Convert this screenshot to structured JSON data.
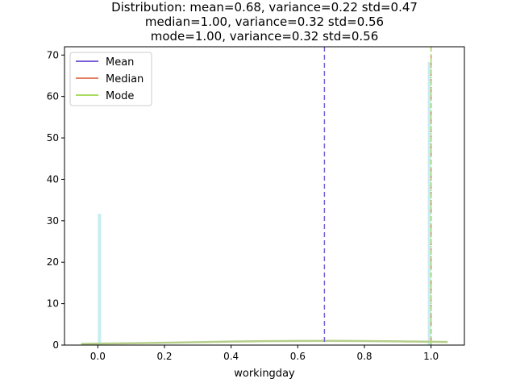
{
  "chart_data": {
    "type": "bar",
    "title_lines": [
      "Distribution: mean=0.68, variance=0.22 std=0.47",
      "median=1.00, variance=0.32 std=0.56",
      "mode=1.00, variance=0.32 std=0.56"
    ],
    "xlabel": "workingday",
    "ylabel": "",
    "xlim": [
      -0.1,
      1.1
    ],
    "ylim": [
      0,
      72
    ],
    "x_ticks": [
      0.0,
      0.2,
      0.4,
      0.6,
      0.8,
      1.0
    ],
    "x_tick_labels": [
      "0.0",
      "0.2",
      "0.4",
      "0.6",
      "0.8",
      "1.0"
    ],
    "y_ticks": [
      0,
      10,
      20,
      30,
      40,
      50,
      60,
      70
    ],
    "y_tick_labels": [
      "0",
      "10",
      "20",
      "30",
      "40",
      "50",
      "60",
      "70"
    ],
    "histogram": {
      "color": "#c9eef0",
      "bins": [
        {
          "x0": 0.0,
          "x1": 0.01,
          "value": 31.7
        },
        {
          "x0": 0.99,
          "x1": 1.0,
          "value": 68.3
        }
      ]
    },
    "kde_curve": {
      "color": "#b5cf8a",
      "x": [
        -0.05,
        0.0,
        0.1,
        0.2,
        0.3,
        0.4,
        0.5,
        0.6,
        0.7,
        0.8,
        0.9,
        1.0,
        1.05
      ],
      "y": [
        0.3,
        0.35,
        0.45,
        0.55,
        0.7,
        0.85,
        0.95,
        1.0,
        1.02,
        0.98,
        0.9,
        0.8,
        0.75
      ]
    },
    "vlines": [
      {
        "name": "Mean",
        "x": 0.68,
        "color": "#7b5fd6",
        "dash": "6,4"
      },
      {
        "name": "Median",
        "x": 1.0,
        "color": "#e07f5f",
        "dash": "6,4"
      },
      {
        "name": "Mode",
        "x": 1.0,
        "color": "#a8dc5f",
        "dash": "6,3,2,3"
      }
    ],
    "legend": {
      "placement": "top-left",
      "entries": [
        {
          "label": "Mean",
          "color": "#7b5fd6"
        },
        {
          "label": "Median",
          "color": "#e07f5f"
        },
        {
          "label": "Mode",
          "color": "#a8dc5f"
        }
      ]
    },
    "grid": false
  }
}
